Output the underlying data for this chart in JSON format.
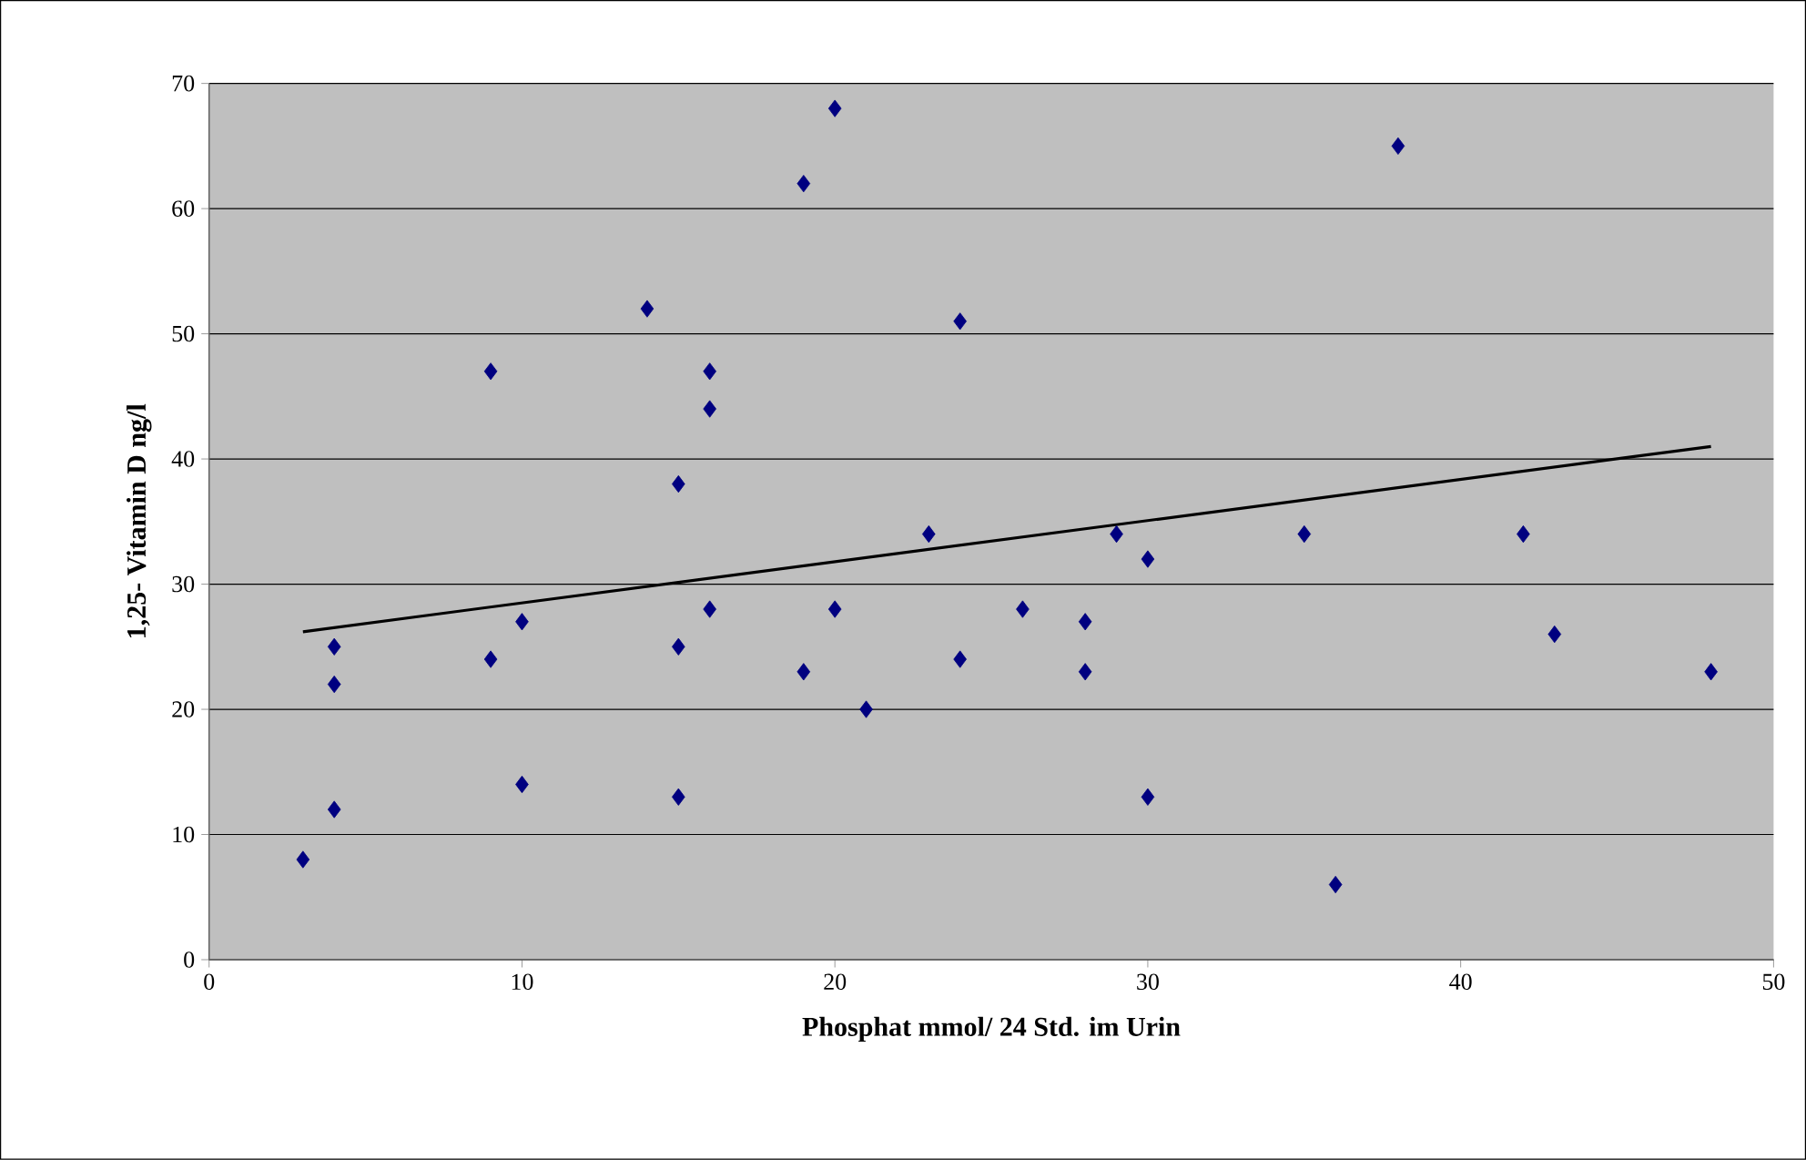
{
  "chart_data": {
    "type": "scatter",
    "xlabel": "Phosphat  mmol/ 24 Std. im Urin",
    "ylabel": "1,25- Vitamin D ng/l",
    "xlim": [
      0,
      50
    ],
    "xticks": [
      0,
      10,
      20,
      30,
      40,
      50
    ],
    "ylim": [
      0,
      70
    ],
    "yticks": [
      0,
      10,
      20,
      30,
      40,
      50,
      60,
      70
    ],
    "grid": "y",
    "marker": "diamond",
    "series": [
      {
        "color": "#000080",
        "x": [
          3,
          4,
          4,
          4,
          9,
          9,
          10,
          10,
          14,
          15,
          15,
          15,
          16,
          16,
          16,
          19,
          19,
          20,
          20,
          21,
          23,
          24,
          24,
          26,
          28,
          28,
          29,
          30,
          30,
          35,
          36,
          38,
          42,
          43,
          48
        ],
        "values": [
          8,
          25,
          22,
          12,
          47,
          24,
          27,
          14,
          52,
          38,
          25,
          13,
          47,
          44,
          28,
          62,
          23,
          68,
          28,
          20,
          34,
          51,
          24,
          28,
          27,
          23,
          34,
          32,
          13,
          34,
          6,
          65,
          34,
          26,
          23
        ]
      },
      {
        "type": "line",
        "color": "#000000",
        "marker": "none",
        "x": [
          3,
          48
        ],
        "values": [
          26.2,
          41
        ]
      }
    ]
  }
}
